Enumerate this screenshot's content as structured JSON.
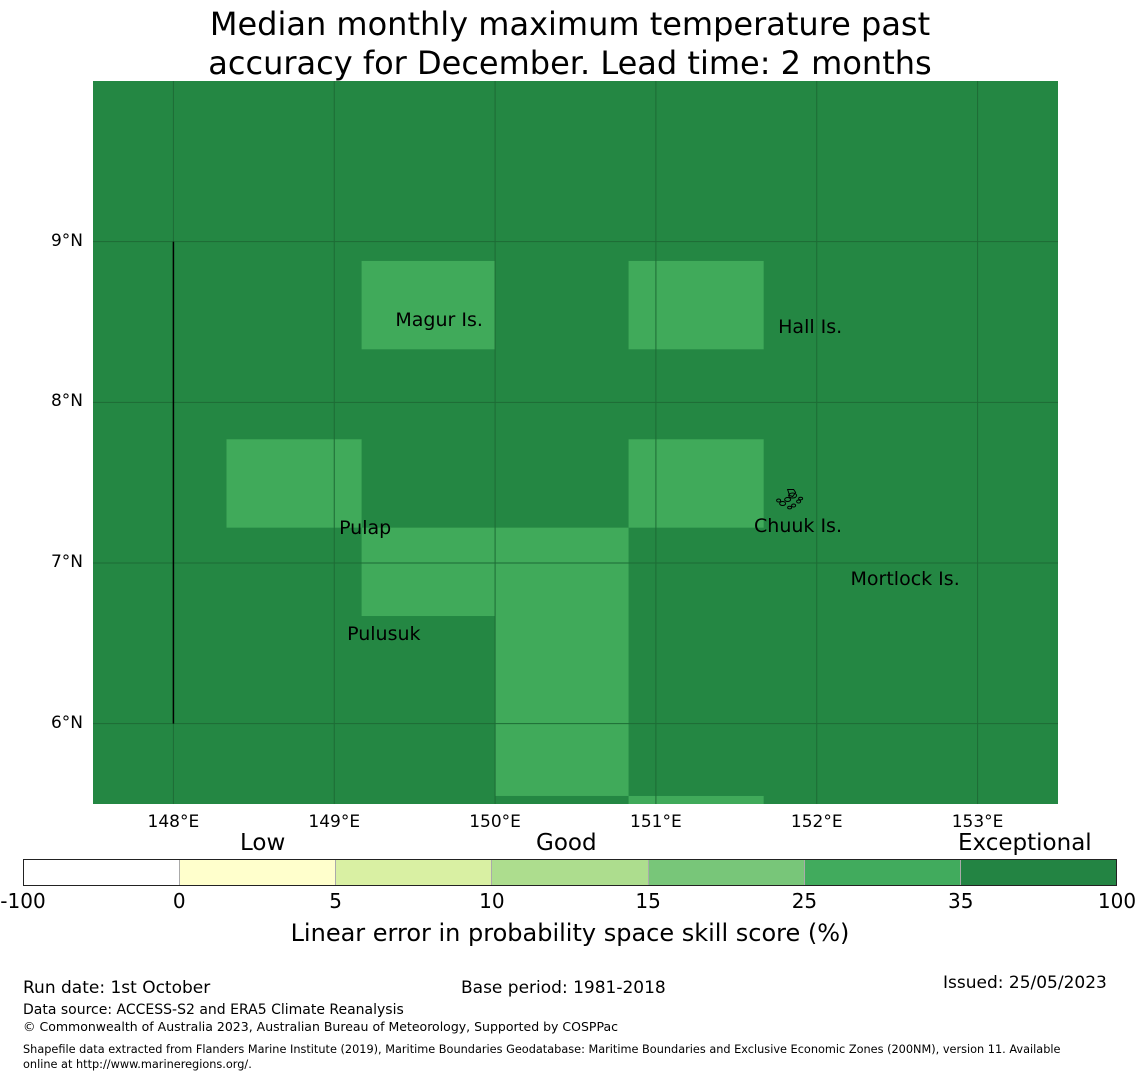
{
  "title": {
    "line1": "Median monthly maximum temperature past",
    "line2": "accuracy for December. Lead time: 2 months"
  },
  "map": {
    "lon_range": [
      147.5,
      153.5
    ],
    "lat_range": [
      5.5,
      10.0
    ],
    "base_color": "#248743",
    "highlight_color": "#40aa5a",
    "gridline_color": "#1d6b35",
    "x_ticks": [
      {
        "lon": 148,
        "label": "148°E"
      },
      {
        "lon": 149,
        "label": "149°E"
      },
      {
        "lon": 150,
        "label": "150°E"
      },
      {
        "lon": 151,
        "label": "151°E"
      },
      {
        "lon": 152,
        "label": "152°E"
      },
      {
        "lon": 153,
        "label": "153°E"
      }
    ],
    "y_ticks": [
      {
        "lat": 9,
        "label": "9°N"
      },
      {
        "lat": 8,
        "label": "8°N"
      },
      {
        "lat": 7,
        "label": "7°N"
      },
      {
        "lat": 6,
        "label": "6°N"
      }
    ],
    "cells_25_35": [
      {
        "lon0": 149.17,
        "lon1": 150.0,
        "lat0": 8.33,
        "lat1": 8.88
      },
      {
        "lon0": 150.83,
        "lon1": 151.67,
        "lat0": 8.33,
        "lat1": 8.88
      },
      {
        "lon0": 148.33,
        "lon1": 149.17,
        "lat0": 7.22,
        "lat1": 7.77
      },
      {
        "lon0": 150.83,
        "lon1": 151.67,
        "lat0": 7.22,
        "lat1": 7.77
      },
      {
        "lon0": 149.17,
        "lon1": 150.0,
        "lat0": 6.67,
        "lat1": 7.22
      },
      {
        "lon0": 150.0,
        "lon1": 150.83,
        "lat0": 5.55,
        "lat1": 7.22
      },
      {
        "lon0": 150.83,
        "lon1": 151.67,
        "lat0": 5.5,
        "lat1": 5.55
      }
    ],
    "boundary_line": {
      "lon": 148.0,
      "lat0": 6.0,
      "lat1": 9.0
    },
    "places": [
      {
        "name": "Magur Is.",
        "lon": 149.38,
        "lat": 8.51
      },
      {
        "name": "Hall Is.",
        "lon": 151.76,
        "lat": 8.47
      },
      {
        "name": "Pulap",
        "lon": 149.03,
        "lat": 7.22
      },
      {
        "name": "Chuuk Is.",
        "lon": 151.61,
        "lat": 7.23
      },
      {
        "name": "Mortlock Is.",
        "lon": 152.21,
        "lat": 6.9
      },
      {
        "name": "Pulusuk",
        "lon": 149.08,
        "lat": 6.56
      }
    ]
  },
  "colorbar": {
    "categories": [
      "Low",
      "Good",
      "Exceptional"
    ],
    "bins": [
      {
        "from": "-100",
        "to": "0",
        "color": "#ffffff"
      },
      {
        "from": "0",
        "to": "5",
        "color": "#ffffcc"
      },
      {
        "from": "5",
        "to": "10",
        "color": "#d9f0a3"
      },
      {
        "from": "10",
        "to": "15",
        "color": "#addd8e"
      },
      {
        "from": "15",
        "to": "25",
        "color": "#78c679"
      },
      {
        "from": "25",
        "to": "35",
        "color": "#41ab5d"
      },
      {
        "from": "35",
        "to": "100",
        "color": "#238443"
      }
    ],
    "tick_labels": [
      "-100",
      "0",
      "5",
      "10",
      "15",
      "25",
      "35",
      "100"
    ],
    "label": "Linear error in probability space skill score (%)"
  },
  "footer": {
    "run_date": "Run date: 1st October",
    "base_period": "Base period: 1981-2018",
    "issued": "Issued: 25/05/2023",
    "data_source": "Data source: ACCESS-S2 and ERA5 Climate Reanalysis",
    "copyright": "© Commonwealth of Australia 2023, Australian Bureau of Meteorology, Supported by COSPPac",
    "shapefile_line1": "Shapefile data extracted from Flanders Marine Institute (2019), Maritime Boundaries Geodatabase: Maritime Boundaries and Exclusive Economic Zones (200NM), version 11. Available",
    "shapefile_line2": "online at http://www.marineregions.org/."
  }
}
